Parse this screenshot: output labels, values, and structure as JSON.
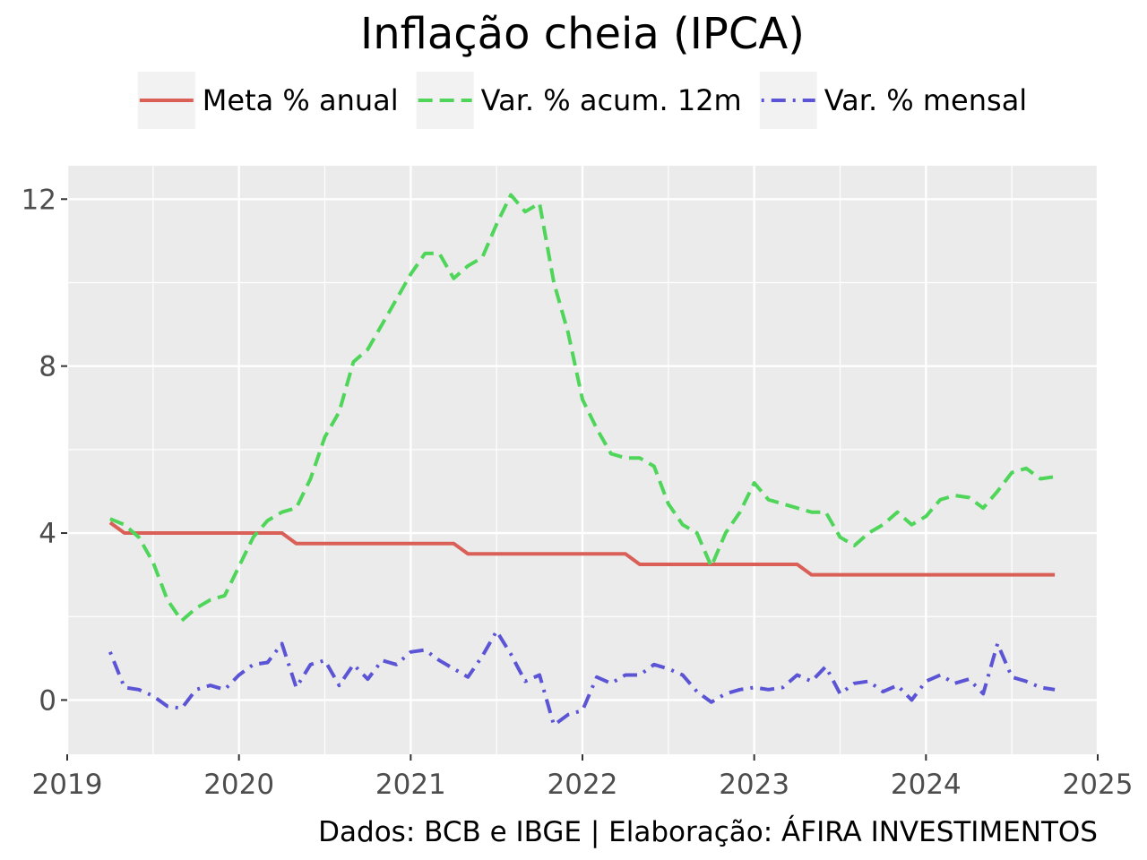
{
  "chart_data": {
    "type": "line",
    "title": "Inflação cheia (IPCA)",
    "caption": "Dados: BCB e IBGE | Elaboração: ÁFIRA INVESTIMENTOS",
    "xlabel": "",
    "ylabel": "",
    "x_ticks": [
      "2019",
      "2020",
      "2021",
      "2022",
      "2023",
      "2024",
      "2025"
    ],
    "y_ticks": [
      "0",
      "4",
      "8",
      "12"
    ],
    "xlim": [
      "2019-01",
      "2025-01"
    ],
    "ylim": [
      -1.3,
      12.8
    ],
    "grid": true,
    "legend_position": "top",
    "x": [
      "2019-04",
      "2019-05",
      "2019-06",
      "2019-07",
      "2019-08",
      "2019-09",
      "2019-10",
      "2019-11",
      "2019-12",
      "2020-01",
      "2020-02",
      "2020-03",
      "2020-04",
      "2020-05",
      "2020-06",
      "2020-07",
      "2020-08",
      "2020-09",
      "2020-10",
      "2020-11",
      "2020-12",
      "2021-01",
      "2021-02",
      "2021-03",
      "2021-04",
      "2021-05",
      "2021-06",
      "2021-07",
      "2021-08",
      "2021-09",
      "2021-10",
      "2021-11",
      "2021-12",
      "2022-01",
      "2022-02",
      "2022-03",
      "2022-04",
      "2022-05",
      "2022-06",
      "2022-07",
      "2022-08",
      "2022-09",
      "2022-10",
      "2022-11",
      "2022-12",
      "2023-01",
      "2023-02",
      "2023-03",
      "2023-04",
      "2023-05",
      "2023-06",
      "2023-07",
      "2023-08",
      "2023-09",
      "2023-10",
      "2023-11",
      "2023-12",
      "2024-01",
      "2024-02",
      "2024-03",
      "2024-04",
      "2024-05",
      "2024-06",
      "2024-07",
      "2024-08",
      "2024-09",
      "2024-10"
    ],
    "series": [
      {
        "name": "Meta % anual",
        "color": "#d95f57",
        "dash": "solid",
        "values": [
          4.25,
          4.0,
          4.0,
          4.0,
          4.0,
          4.0,
          4.0,
          4.0,
          4.0,
          4.0,
          4.0,
          4.0,
          4.0,
          3.75,
          3.75,
          3.75,
          3.75,
          3.75,
          3.75,
          3.75,
          3.75,
          3.75,
          3.75,
          3.75,
          3.75,
          3.5,
          3.5,
          3.5,
          3.5,
          3.5,
          3.5,
          3.5,
          3.5,
          3.5,
          3.5,
          3.5,
          3.5,
          3.25,
          3.25,
          3.25,
          3.25,
          3.25,
          3.25,
          3.25,
          3.25,
          3.25,
          3.25,
          3.25,
          3.25,
          3.0,
          3.0,
          3.0,
          3.0,
          3.0,
          3.0,
          3.0,
          3.0,
          3.0,
          3.0,
          3.0,
          3.0,
          3.0,
          3.0,
          3.0,
          3.0,
          3.0,
          3.0
        ]
      },
      {
        "name": "Var. % acum. 12m",
        "color": "#4fd65a",
        "dash": "dashed",
        "values": [
          4.34,
          4.2,
          3.9,
          3.3,
          2.4,
          1.9,
          2.2,
          2.4,
          2.5,
          3.2,
          3.9,
          4.3,
          4.5,
          4.6,
          5.3,
          6.3,
          6.9,
          8.1,
          8.4,
          9.0,
          9.6,
          10.2,
          10.7,
          10.7,
          10.1,
          10.4,
          10.6,
          11.4,
          12.1,
          11.7,
          11.9,
          10.0,
          8.8,
          7.2,
          6.5,
          5.9,
          5.8,
          5.8,
          5.6,
          4.7,
          4.2,
          4.0,
          3.2,
          4.0,
          4.5,
          5.2,
          4.8,
          4.7,
          4.6,
          4.5,
          4.5,
          3.9,
          3.7,
          4.0,
          4.2,
          4.5,
          4.2,
          4.4,
          4.8,
          4.9,
          4.85,
          4.6,
          5.0,
          5.45,
          5.55,
          5.3,
          5.35
        ]
      },
      {
        "name": "Var. % mensal",
        "color": "#5b55d6",
        "dash": "dotdash",
        "values": [
          1.15,
          0.3,
          0.25,
          0.1,
          -0.15,
          -0.2,
          0.25,
          0.35,
          0.25,
          0.6,
          0.85,
          0.9,
          1.35,
          0.3,
          0.85,
          0.95,
          0.35,
          0.85,
          0.5,
          0.95,
          0.85,
          1.15,
          1.2,
          0.95,
          0.75,
          0.55,
          1.05,
          1.65,
          1.1,
          0.45,
          0.6,
          -0.6,
          -0.35,
          -0.25,
          0.55,
          0.4,
          0.6,
          0.6,
          0.85,
          0.75,
          0.6,
          0.2,
          -0.05,
          0.15,
          0.25,
          0.3,
          0.25,
          0.3,
          0.6,
          0.45,
          0.8,
          0.15,
          0.4,
          0.45,
          0.2,
          0.35,
          0.0,
          0.45,
          0.6,
          0.4,
          0.5,
          0.15,
          1.35,
          0.55,
          0.45,
          0.3,
          0.25
        ]
      }
    ]
  }
}
